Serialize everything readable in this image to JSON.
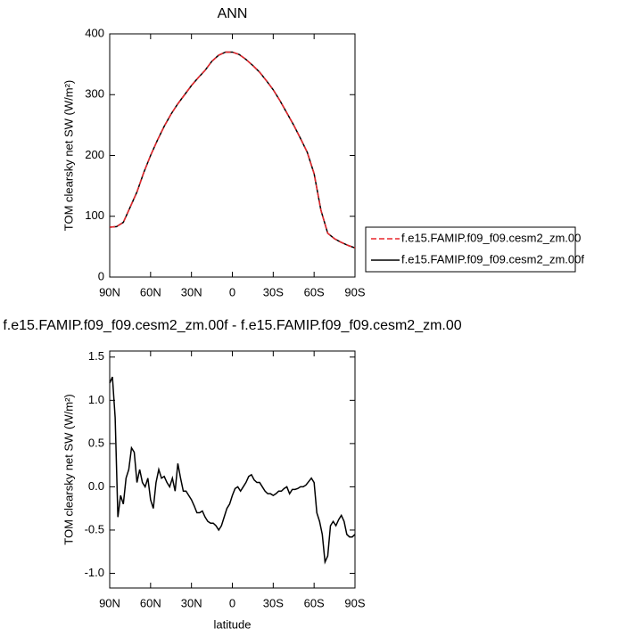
{
  "chart_data": [
    {
      "type": "line",
      "title": "ANN",
      "ylabel": "TOM clearsky net SW (W/m²)",
      "x": [
        90,
        85,
        80,
        75,
        70,
        65,
        60,
        55,
        50,
        45,
        40,
        35,
        30,
        25,
        20,
        15,
        10,
        5,
        0,
        -5,
        -10,
        -15,
        -20,
        -25,
        -30,
        -35,
        -40,
        -45,
        -50,
        -55,
        -60,
        -65,
        -70,
        -75,
        -80,
        -85,
        -90
      ],
      "series": [
        {
          "name": "f.e15.FAMIP.f09_f09.cesm2_zm.00",
          "color": "#e8262c",
          "style": "dashed",
          "values": [
            82,
            83,
            90,
            115,
            140,
            172,
            200,
            225,
            248,
            268,
            285,
            300,
            315,
            328,
            340,
            355,
            365,
            370,
            370,
            366,
            358,
            348,
            337,
            323,
            308,
            290,
            270,
            250,
            228,
            205,
            170,
            110,
            72,
            63,
            57,
            52,
            48
          ]
        },
        {
          "name": "f.e15.FAMIP.f09_f09.cesm2_zm.00f",
          "color": "#000000",
          "style": "solid",
          "values": [
            82,
            83,
            90,
            115,
            140,
            172,
            200,
            225,
            248,
            268,
            285,
            300,
            315,
            328,
            340,
            355,
            365,
            370,
            370,
            366,
            358,
            348,
            337,
            323,
            308,
            290,
            270,
            250,
            228,
            205,
            170,
            110,
            72,
            63,
            57,
            52,
            48
          ]
        }
      ],
      "xlim": [
        90,
        -90
      ],
      "xticks": [
        {
          "value": 90,
          "label": "90N"
        },
        {
          "value": 60,
          "label": "60N"
        },
        {
          "value": 30,
          "label": "30N"
        },
        0,
        {
          "value": -30,
          "label": "30S"
        },
        {
          "value": -60,
          "label": "60S"
        },
        {
          "value": -90,
          "label": "90S"
        }
      ],
      "ylim": [
        0,
        400
      ],
      "yticks": [
        0,
        100,
        200,
        300,
        400
      ],
      "legend": "right"
    },
    {
      "type": "line",
      "title": "f.e15.FAMIP.f09_f09.cesm2_zm.00f - f.e15.FAMIP.f09_f09.cesm2_zm.00",
      "ylabel": "TOM clearsky net SW (W/m²)",
      "xlabel": "latitude",
      "x": [
        90,
        88,
        86,
        84,
        82,
        80,
        78,
        76,
        74,
        72,
        70,
        68,
        66,
        64,
        62,
        60,
        58,
        56,
        54,
        52,
        50,
        48,
        46,
        44,
        42,
        40,
        38,
        36,
        34,
        32,
        30,
        28,
        26,
        24,
        22,
        20,
        18,
        16,
        14,
        12,
        10,
        8,
        6,
        4,
        2,
        0,
        -2,
        -4,
        -6,
        -8,
        -10,
        -12,
        -14,
        -16,
        -18,
        -20,
        -22,
        -24,
        -26,
        -28,
        -30,
        -32,
        -34,
        -36,
        -38,
        -40,
        -42,
        -44,
        -46,
        -48,
        -50,
        -52,
        -54,
        -56,
        -58,
        -60,
        -62,
        -64,
        -66,
        -68,
        -70,
        -72,
        -74,
        -76,
        -78,
        -80,
        -82,
        -84,
        -86,
        -88,
        -90
      ],
      "series": [
        {
          "color": "#000000",
          "style": "solid",
          "values": [
            1.2,
            1.27,
            0.8,
            -0.35,
            -0.1,
            -0.2,
            0.1,
            0.2,
            0.45,
            0.4,
            0.05,
            0.2,
            0.05,
            0.0,
            0.1,
            -0.15,
            -0.25,
            0.05,
            0.2,
            0.1,
            0.12,
            0.05,
            0.0,
            0.1,
            -0.05,
            0.27,
            0.1,
            -0.05,
            -0.05,
            -0.1,
            -0.15,
            -0.22,
            -0.3,
            -0.3,
            -0.28,
            -0.35,
            -0.4,
            -0.42,
            -0.42,
            -0.45,
            -0.5,
            -0.45,
            -0.35,
            -0.25,
            -0.2,
            -0.1,
            -0.02,
            0.0,
            -0.05,
            0.0,
            0.05,
            0.12,
            0.14,
            0.08,
            0.05,
            0.05,
            0.0,
            -0.05,
            -0.08,
            -0.08,
            -0.1,
            -0.08,
            -0.05,
            -0.05,
            -0.02,
            0.0,
            -0.08,
            -0.03,
            -0.03,
            -0.02,
            0.0,
            0.0,
            0.02,
            0.06,
            0.1,
            0.05,
            -0.3,
            -0.4,
            -0.55,
            -0.87,
            -0.8,
            -0.45,
            -0.4,
            -0.45,
            -0.38,
            -0.33,
            -0.4,
            -0.55,
            -0.58,
            -0.58,
            -0.55
          ]
        }
      ],
      "xlim": [
        90,
        -90
      ],
      "xticks": [
        {
          "value": 90,
          "label": "90N"
        },
        {
          "value": 60,
          "label": "60N"
        },
        {
          "value": 30,
          "label": "30N"
        },
        0,
        {
          "value": -30,
          "label": "30S"
        },
        {
          "value": -60,
          "label": "60S"
        },
        {
          "value": -90,
          "label": "90S"
        }
      ],
      "ylim": [
        -1.17,
        1.57
      ],
      "yticks": [
        {
          "value": -1,
          "label": "-1.0"
        },
        -0.5,
        {
          "value": 0,
          "label": "0.0"
        },
        0.5,
        {
          "value": 1,
          "label": "1.0"
        },
        1.5
      ]
    }
  ]
}
